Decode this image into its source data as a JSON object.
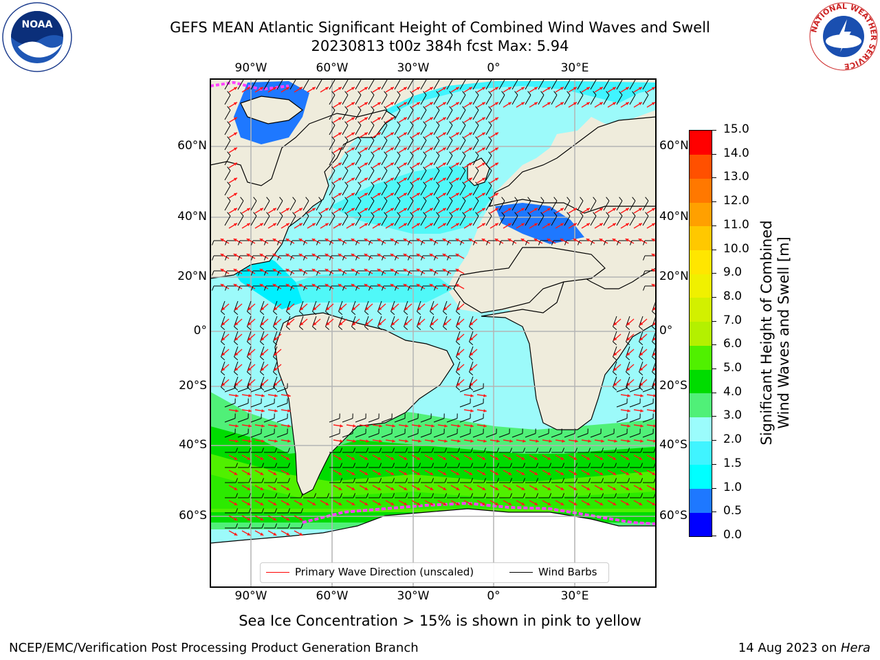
{
  "title": {
    "line1": "GEFS MEAN Atlantic Significant Height of Combined Wind Waves and Swell",
    "line2": "20230813 t00z 384h fcst   Max: 5.94"
  },
  "axes": {
    "lon_ticks": [
      "90°W",
      "60°W",
      "30°W",
      "0°",
      "30°E"
    ],
    "lat_ticks": [
      "60°N",
      "40°N",
      "20°N",
      "0°",
      "20°S",
      "40°S",
      "60°S"
    ]
  },
  "colorbar": {
    "label_line1": "Significant Height of Combined",
    "label_line2": "Wind Waves and Swell [m]",
    "ticks": [
      "0.0",
      "0.5",
      "1.0",
      "1.5",
      "2.0",
      "3.0",
      "4.0",
      "5.0",
      "6.0",
      "7.0",
      "8.0",
      "9.0",
      "10.0",
      "11.0",
      "12.0",
      "13.0",
      "14.0",
      "15.0"
    ],
    "colors": [
      "#0000ff",
      "#1e78ff",
      "#00ffff",
      "#40f4ff",
      "#9bfcfc",
      "#50f078",
      "#00dc00",
      "#50f000",
      "#b4f000",
      "#d2f000",
      "#f0f000",
      "#ffe600",
      "#ffc800",
      "#ffa000",
      "#ff7800",
      "#ff5000",
      "#ff0000"
    ]
  },
  "legend": {
    "wave_direction": "Primary Wave Direction (unscaled)",
    "wind_barbs": "Wind Barbs",
    "wave_color": "#ff0000",
    "barb_color": "#000000"
  },
  "note": "Sea Ice Concentration > 15% is shown in pink to yellow",
  "footer": {
    "left": "NCEP/EMC/Verification Post Processing Product Generation Branch",
    "date": "14 Aug 2023 on ",
    "machine": "Hera"
  },
  "logos": {
    "noaa": "NOAA",
    "nws_ring": "NATIONAL WEATHER SERVICE"
  },
  "colors": {
    "land": "#efecdc",
    "ice": "#ffffff",
    "grid": "#b4b4b4"
  }
}
